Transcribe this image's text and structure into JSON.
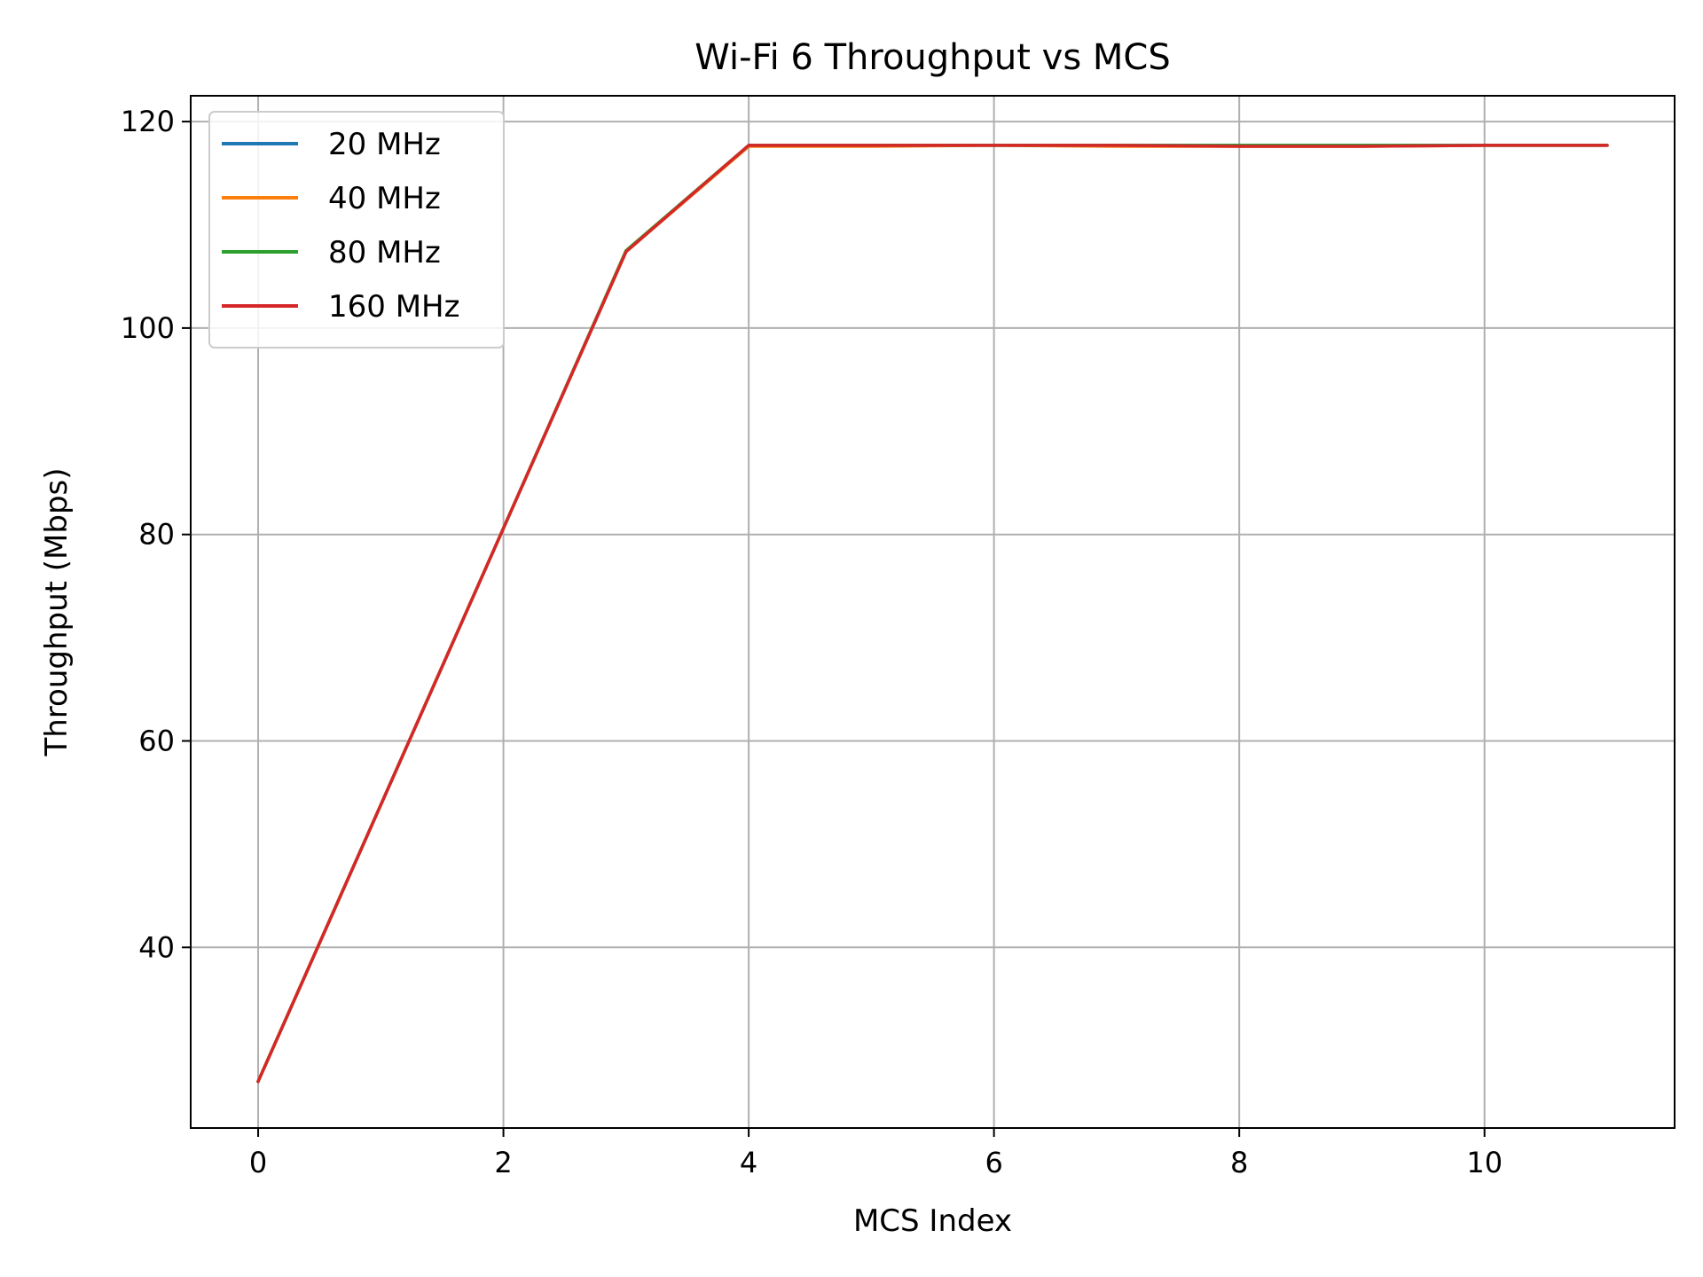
{
  "chart_data": {
    "type": "line",
    "title": "Wi-Fi 6 Throughput vs MCS",
    "xlabel": "MCS Index",
    "ylabel": "Throughput (Mbps)",
    "xlim": [
      -0.55,
      11.55
    ],
    "ylim": [
      22.5,
      122.5
    ],
    "xticks": [
      0,
      2,
      4,
      6,
      8,
      10
    ],
    "yticks": [
      40,
      60,
      80,
      100,
      120
    ],
    "grid": true,
    "legend_position": "upper-left",
    "x": [
      0,
      1,
      2,
      3,
      4,
      5,
      6,
      7,
      8,
      9,
      10,
      11
    ],
    "series": [
      {
        "name": "20 MHz",
        "color": "#1f77b4",
        "values": [
          27.0,
          53.8,
          80.6,
          107.4,
          117.7,
          117.7,
          117.7,
          117.7,
          117.7,
          117.7,
          117.7,
          117.7
        ]
      },
      {
        "name": "40 MHz",
        "color": "#ff7f0e",
        "values": [
          27.0,
          53.8,
          80.6,
          107.4,
          117.6,
          117.6,
          117.7,
          117.6,
          117.6,
          117.6,
          117.7,
          117.7
        ]
      },
      {
        "name": "80 MHz",
        "color": "#2ca02c",
        "values": [
          27.0,
          53.8,
          80.6,
          107.5,
          117.7,
          117.7,
          117.7,
          117.7,
          117.7,
          117.7,
          117.7,
          117.7
        ]
      },
      {
        "name": "160 MHz",
        "color": "#d62728",
        "values": [
          27.0,
          53.8,
          80.6,
          107.4,
          117.7,
          117.7,
          117.7,
          117.7,
          117.6,
          117.6,
          117.7,
          117.7
        ]
      }
    ]
  }
}
